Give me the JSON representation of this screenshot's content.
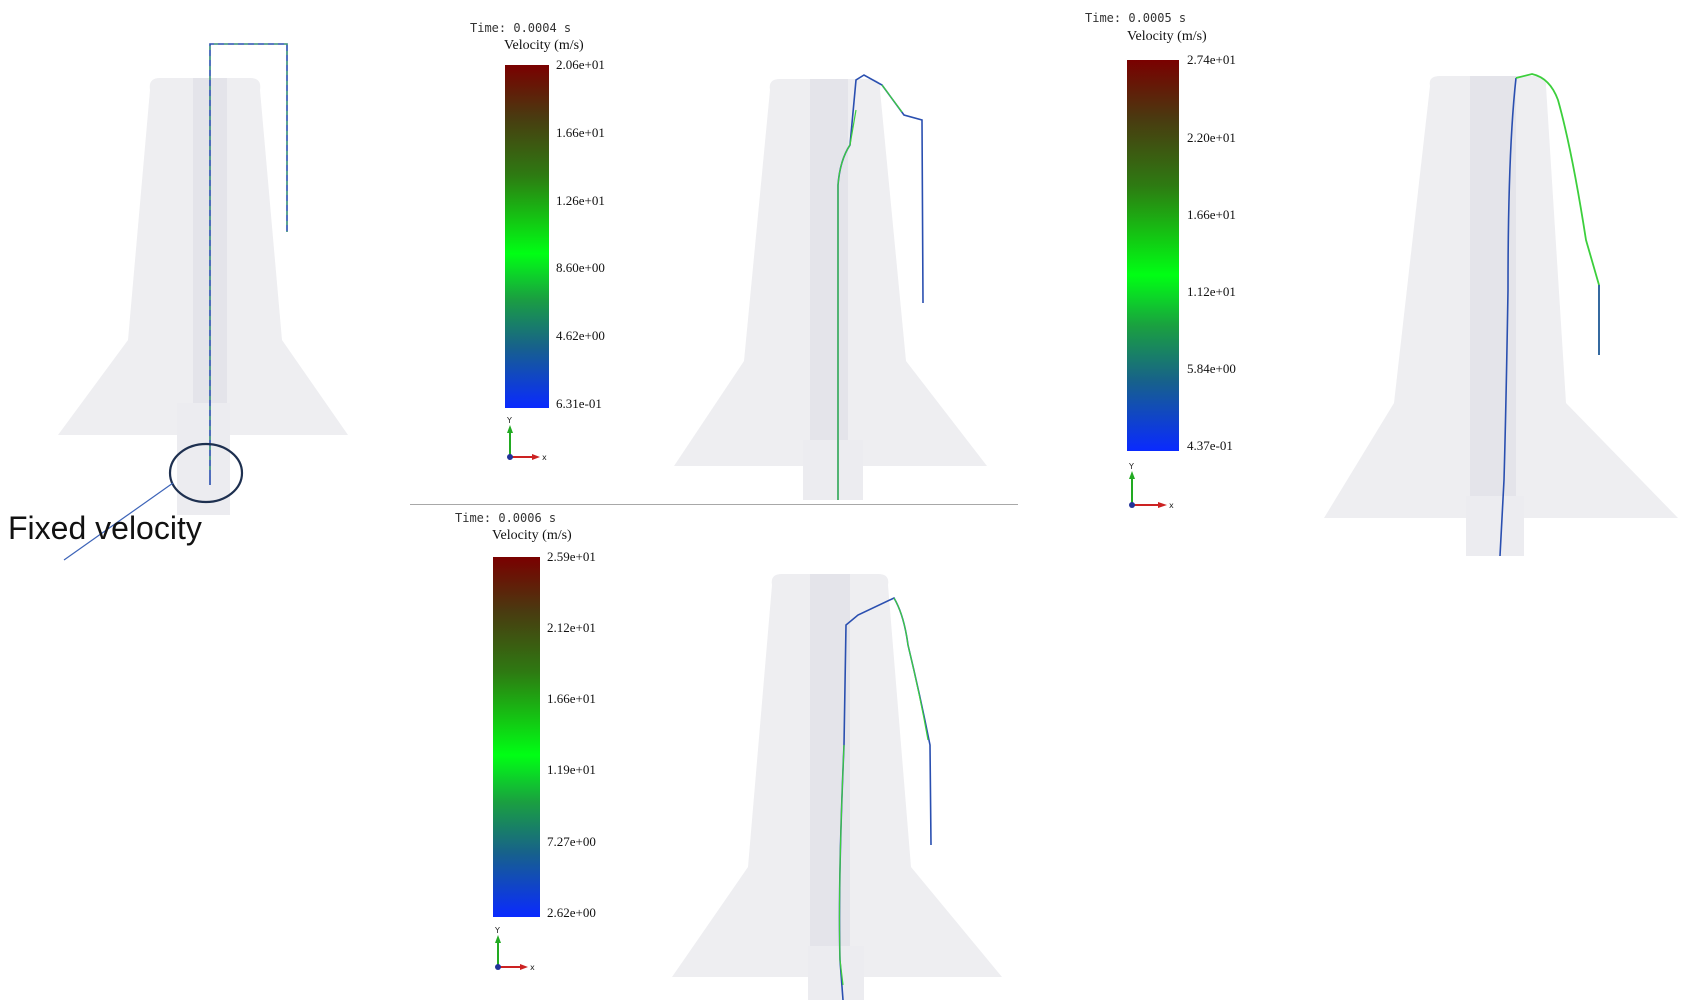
{
  "annotation": {
    "fixed_velocity_label": "Fixed velocity"
  },
  "panels": [
    {
      "time_label": "Time: 0.0004 s",
      "colorbar_title": "Velocity (m/s)",
      "ticks": [
        "2.06e+01",
        "1.66e+01",
        "1.26e+01",
        "8.60e+00",
        "4.62e+00",
        "6.31e-01"
      ]
    },
    {
      "time_label": "Time: 0.0005 s",
      "colorbar_title": "Velocity (m/s)",
      "ticks": [
        "2.74e+01",
        "2.20e+01",
        "1.66e+01",
        "1.12e+01",
        "5.84e+00",
        "4.37e-01"
      ]
    },
    {
      "time_label": "Time: 0.0006 s",
      "colorbar_title": "Velocity (m/s)",
      "ticks": [
        "2.59e+01",
        "2.12e+01",
        "1.66e+01",
        "1.19e+01",
        "7.27e+00",
        "2.62e+00"
      ]
    }
  ],
  "axes_labels": {
    "x": "x",
    "y": "Y"
  },
  "colors": {
    "body_fill": "#eeeef1",
    "wire_blue": "#2a4fb0",
    "wire_green": "#3ccf3c",
    "circle_stroke": "#1e3050",
    "colormap": [
      "#7a0000",
      "#2e7a12",
      "#00ff14",
      "#17628a",
      "#0a2aff"
    ]
  }
}
